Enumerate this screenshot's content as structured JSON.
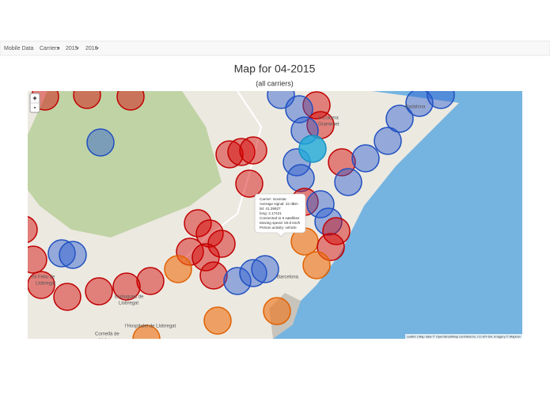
{
  "navbar": {
    "brand": "Mobile Data",
    "menus": [
      "Carriers",
      "2015",
      "2016"
    ]
  },
  "header": {
    "title": "Map for 04-2015",
    "subtitle": "(all carriers)"
  },
  "map": {
    "zoom_in": "+",
    "zoom_out": "-",
    "labels": [
      "a Coloma",
      "Gramenet",
      "Badalona",
      "Barcelona",
      "Esplugues de",
      "Llobregat",
      "int Feliu de",
      "Llobregat",
      "l'Hospitalet de Llobregat",
      "Cornellà de",
      "Llobregat"
    ],
    "popup": [
      "Carrier: movistar",
      "Average signal: 22 dBm",
      "lat: 41.39927",
      "long: 2.17421",
      "Connected to 6 satellites",
      "Moving speed: 50.8 km/h",
      "Person activity: vehicle"
    ],
    "attribution": "Leaflet | Map data © OpenStreetMap contributors, CC-BY-SA, Imagery © Mapbox"
  }
}
